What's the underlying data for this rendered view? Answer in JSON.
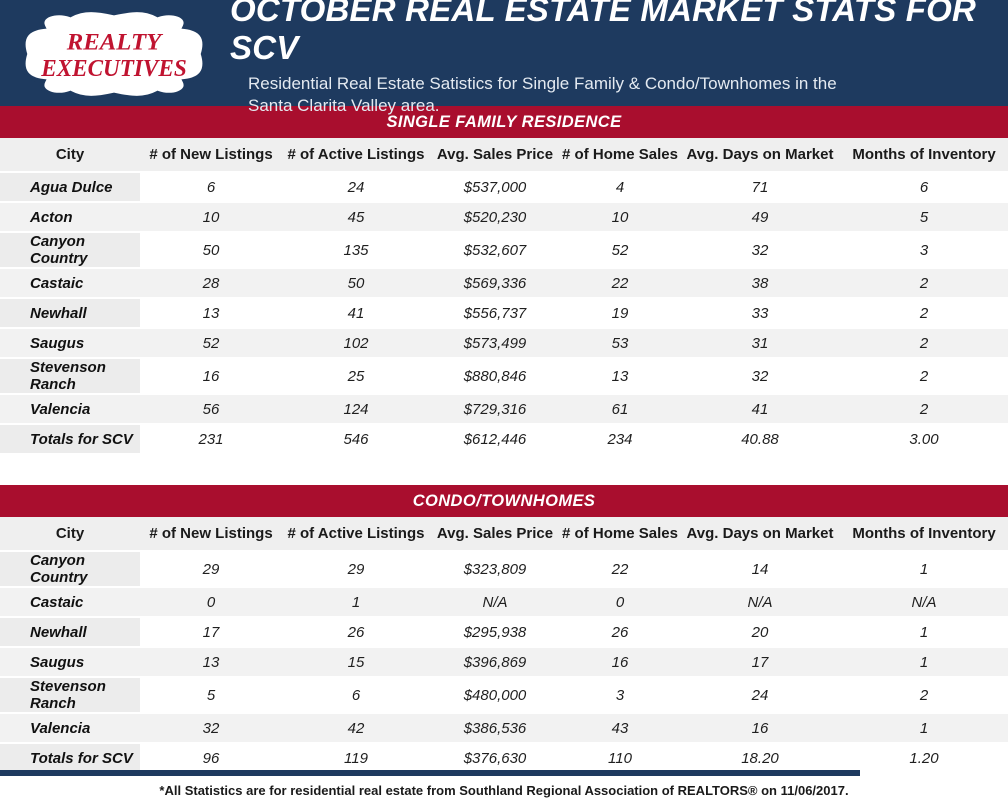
{
  "header": {
    "logo_line1": "REALTY",
    "logo_line2": "EXECUTIVES",
    "title": "OCTOBER REAL ESTATE MARKET STATS FOR SCV",
    "subtitle_line1": "Residential Real Estate Satistics for Single Family & Condo/Townhomes in the",
    "subtitle_line2": "Santa Clarita Valley area."
  },
  "columns": [
    "City",
    "# of New Listings",
    "# of Active Listings",
    "Avg. Sales Price",
    "# of Home Sales",
    "Avg. Days on Market",
    "Months of Inventory"
  ],
  "tables": [
    {
      "banner": "SINGLE FAMILY RESIDENCE",
      "rows": [
        [
          "Agua Dulce",
          "6",
          "24",
          "$537,000",
          "4",
          "71",
          "6"
        ],
        [
          "Acton",
          "10",
          "45",
          "$520,230",
          "10",
          "49",
          "5"
        ],
        [
          "Canyon Country",
          "50",
          "135",
          "$532,607",
          "52",
          "32",
          "3"
        ],
        [
          "Castaic",
          "28",
          "50",
          "$569,336",
          "22",
          "38",
          "2"
        ],
        [
          "Newhall",
          "13",
          "41",
          "$556,737",
          "19",
          "33",
          "2"
        ],
        [
          "Saugus",
          "52",
          "102",
          "$573,499",
          "53",
          "31",
          "2"
        ],
        [
          "Stevenson Ranch",
          "16",
          "25",
          "$880,846",
          "13",
          "32",
          "2"
        ],
        [
          "Valencia",
          "56",
          "124",
          "$729,316",
          "61",
          "41",
          "2"
        ],
        [
          "Totals for SCV",
          "231",
          "546",
          "$612,446",
          "234",
          "40.88",
          "3.00"
        ]
      ]
    },
    {
      "banner": "CONDO/TOWNHOMES",
      "rows": [
        [
          "Canyon Country",
          "29",
          "29",
          "$323,809",
          "22",
          "14",
          "1"
        ],
        [
          "Castaic",
          "0",
          "1",
          "N/A",
          "0",
          "N/A",
          "N/A"
        ],
        [
          "Newhall",
          "17",
          "26",
          "$295,938",
          "26",
          "20",
          "1"
        ],
        [
          "Saugus",
          "13",
          "15",
          "$396,869",
          "16",
          "17",
          "1"
        ],
        [
          "Stevenson Ranch",
          "5",
          "6",
          "$480,000",
          "3",
          "24",
          "2"
        ],
        [
          "Valencia",
          "32",
          "42",
          "$386,536",
          "43",
          "16",
          "1"
        ],
        [
          "Totals for SCV",
          "96",
          "119",
          "$376,630",
          "110",
          "18.20",
          "1.20"
        ]
      ]
    }
  ],
  "footer": {
    "note": "*All Statistics are for residential real estate from Southland Regional Association of REALTORS® on 11/06/2017."
  },
  "colors": {
    "navy": "#1e3a5f",
    "banner_red": "#a90e2e",
    "logo_red": "#c01330",
    "header_row_gray": "#efefef",
    "alt_row_gray": "#f2f2f2",
    "city_col_gray": "#ececec"
  }
}
